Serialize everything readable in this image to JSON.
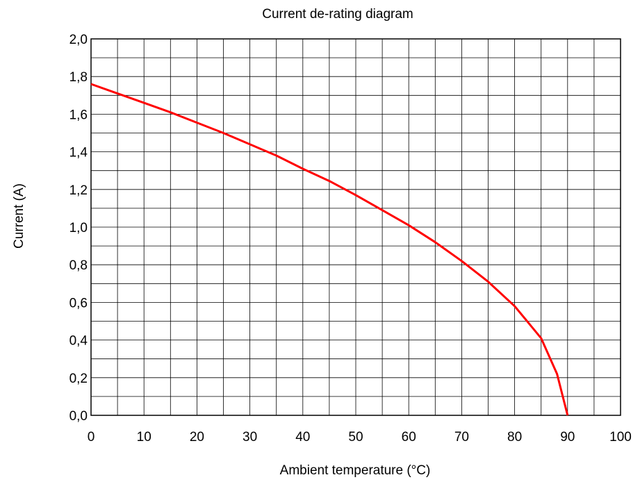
{
  "chart_data": {
    "type": "line",
    "title": "Current de-rating diagram",
    "xlabel": "Ambient temperature   (°C)",
    "ylabel": "Current   (A)",
    "xlim": [
      0,
      100
    ],
    "ylim": [
      0,
      2.0
    ],
    "x_ticks": [
      "0",
      "10",
      "20",
      "30",
      "40",
      "50",
      "60",
      "70",
      "80",
      "90",
      "100"
    ],
    "y_ticks": [
      "0,0",
      "0,2",
      "0,4",
      "0,6",
      "0,8",
      "1,0",
      "1,2",
      "1,4",
      "1,6",
      "1,8",
      "2,0"
    ],
    "grid": true,
    "grid_x_step": 5,
    "grid_y_step": 0.1,
    "series": [
      {
        "color": "#ff0000",
        "x": [
          0,
          5,
          10,
          15,
          20,
          25,
          30,
          35,
          40,
          45,
          50,
          55,
          60,
          65,
          70,
          75,
          80,
          85,
          88,
          90
        ],
        "y": [
          1.76,
          1.71,
          1.66,
          1.61,
          1.555,
          1.5,
          1.44,
          1.38,
          1.31,
          1.245,
          1.17,
          1.09,
          1.01,
          0.92,
          0.82,
          0.71,
          0.58,
          0.41,
          0.22,
          0.0
        ]
      }
    ]
  }
}
